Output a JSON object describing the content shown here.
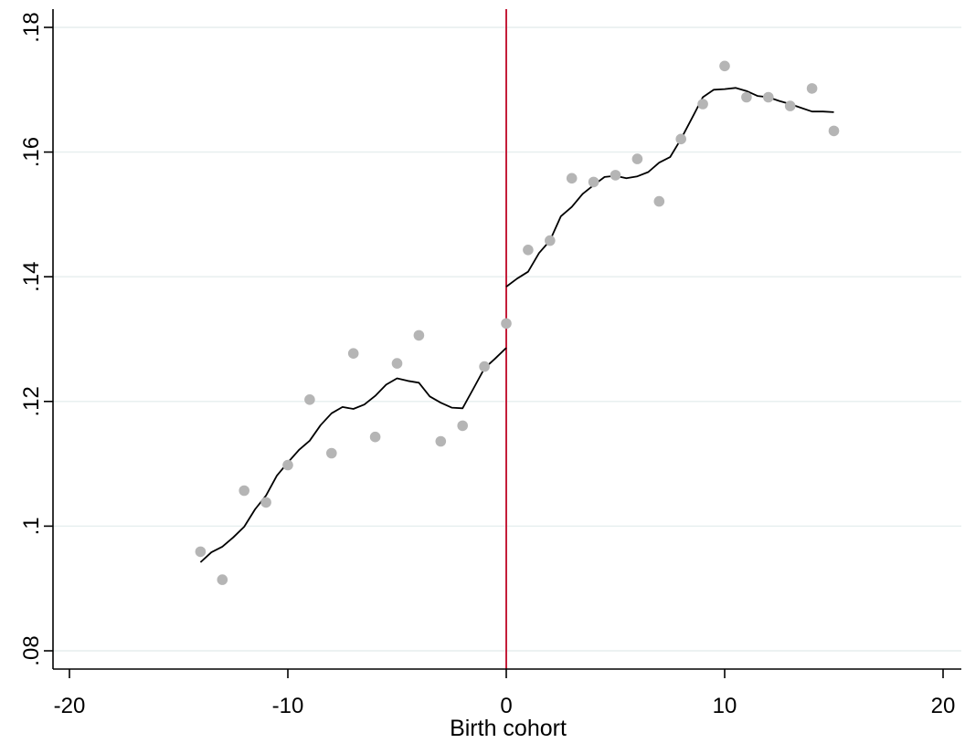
{
  "chart_data": {
    "type": "scatter",
    "xlabel": "Birth cohort",
    "ylabel": "",
    "xlim": [
      -20,
      20
    ],
    "ylim": [
      0.08,
      0.18
    ],
    "x_ticks": [
      {
        "value": -20,
        "label": "-20"
      },
      {
        "value": -10,
        "label": "-10"
      },
      {
        "value": 0,
        "label": "0"
      },
      {
        "value": 10,
        "label": "10"
      },
      {
        "value": 20,
        "label": "20"
      }
    ],
    "y_ticks": [
      {
        "value": 0.08,
        "label": ".08"
      },
      {
        "value": 0.1,
        "label": ".1"
      },
      {
        "value": 0.12,
        "label": ".12"
      },
      {
        "value": 0.14,
        "label": ".14"
      },
      {
        "value": 0.16,
        "label": ".16"
      },
      {
        "value": 0.18,
        "label": ".18"
      }
    ],
    "grid": true,
    "cutoff_line_x": 0,
    "colors": {
      "points": "#b5b5b5",
      "fit": "#000000",
      "cutoff": "#c41e3a",
      "grid": "#e6eeee",
      "axis": "#000000"
    },
    "series": [
      {
        "kind": "points",
        "x": [
          -14,
          -13,
          -12,
          -11,
          -10,
          -9,
          -8,
          -7,
          -6,
          -5,
          -4,
          -3,
          -2,
          -1,
          0,
          1,
          2,
          3,
          4,
          5,
          6,
          7,
          8,
          9,
          10,
          11,
          12,
          13,
          14,
          15
        ],
        "y": [
          0.0959,
          0.0914,
          0.1057,
          0.1038,
          0.1098,
          0.1203,
          0.1117,
          0.1277,
          0.1143,
          0.1261,
          0.1306,
          0.1136,
          0.1161,
          0.1256,
          0.1325,
          0.1443,
          0.1458,
          0.1558,
          0.1552,
          0.1563,
          0.1589,
          0.1521,
          0.1621,
          0.1677,
          0.1738,
          0.1688,
          0.1688,
          0.1674,
          0.1702,
          0.1634
        ]
      },
      {
        "kind": "fit-left",
        "x": [
          -14,
          -13.5,
          -13,
          -12.5,
          -12,
          -11.5,
          -11,
          -10.5,
          -10,
          -9.5,
          -9,
          -8.5,
          -8,
          -7.5,
          -7,
          -6.5,
          -6,
          -5.5,
          -5,
          -4.5,
          -4,
          -3.5,
          -3,
          -2.5,
          -2,
          -1.5,
          -1,
          -0.5,
          0
        ],
        "y": [
          0.0942,
          0.0958,
          0.0967,
          0.0982,
          0.0999,
          0.1027,
          0.1049,
          0.1081,
          0.1102,
          0.1122,
          0.1137,
          0.1162,
          0.1181,
          0.1191,
          0.1188,
          0.1195,
          0.1209,
          0.1227,
          0.1237,
          0.1233,
          0.123,
          0.1208,
          0.1198,
          0.119,
          0.1189,
          0.1221,
          0.1253,
          0.1269,
          0.1286
        ]
      },
      {
        "kind": "fit-right",
        "x": [
          0,
          0.5,
          1,
          1.5,
          2,
          2.5,
          3,
          3.5,
          4,
          4.5,
          5,
          5.5,
          6,
          6.5,
          7,
          7.5,
          8,
          8.5,
          9,
          9.5,
          10,
          10.5,
          11,
          11.5,
          12,
          12.5,
          13,
          13.5,
          14,
          14.5,
          15
        ],
        "y": [
          0.1384,
          0.1397,
          0.1408,
          0.1438,
          0.1458,
          0.1497,
          0.1512,
          0.1533,
          0.1547,
          0.156,
          0.1562,
          0.1558,
          0.1561,
          0.1568,
          0.1583,
          0.1592,
          0.1621,
          0.1654,
          0.1688,
          0.17,
          0.1701,
          0.1703,
          0.1698,
          0.169,
          0.1688,
          0.1682,
          0.1677,
          0.1671,
          0.1665,
          0.1665,
          0.1664
        ]
      }
    ]
  }
}
